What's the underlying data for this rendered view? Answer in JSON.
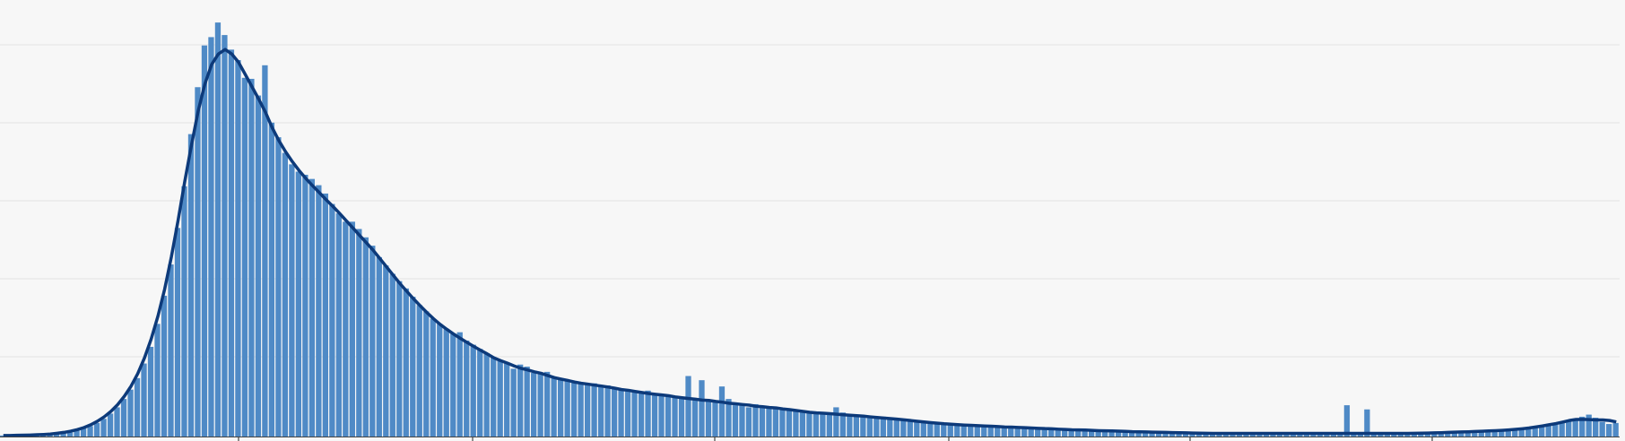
{
  "colors": {
    "background": "#f7f7f7",
    "bar": "#4f8ac6",
    "bar_edge": "#ffffff",
    "curve": "#0d3a7a",
    "grid": "#e3e3e3",
    "axis": "#444444"
  },
  "chart_data": {
    "type": "bar",
    "overlay": "smoothed-density-line",
    "grid": "horizontal",
    "legend": "none",
    "x_tick_count": 6,
    "gridline_count": 5,
    "ylim": [
      0,
      410
    ],
    "values": [
      1,
      1,
      1,
      1,
      1,
      2,
      2,
      2,
      3,
      3,
      4,
      6,
      8,
      10,
      13,
      17,
      22,
      28,
      36,
      45,
      56,
      70,
      86,
      108,
      135,
      165,
      200,
      240,
      290,
      335,
      375,
      383,
      397,
      385,
      371,
      361,
      366,
      343,
      327,
      314,
      301,
      287,
      272,
      261,
      254,
      251,
      247,
      241,
      233,
      223,
      214,
      206,
      206,
      199,
      191,
      183,
      172,
      164,
      156,
      149,
      142,
      134,
      126,
      120,
      113,
      108,
      103,
      99,
      95,
      92,
      88,
      84,
      80,
      76,
      73,
      70,
      65,
      69,
      67,
      61,
      60,
      62,
      57,
      55,
      54,
      52,
      51,
      51,
      51,
      49,
      49,
      47,
      46,
      44,
      43,
      42,
      44,
      41,
      40,
      39,
      39,
      38,
      37,
      36,
      35,
      35,
      34,
      33,
      36,
      30,
      31,
      28,
      31,
      29,
      29,
      28,
      27,
      26,
      25,
      24,
      24,
      23,
      22,
      21,
      22,
      23,
      21,
      20,
      19,
      19,
      18,
      19,
      18,
      17,
      16,
      15,
      15,
      14,
      14,
      13,
      12,
      12,
      11,
      11,
      11,
      11,
      10,
      10,
      10,
      9,
      9,
      9,
      8,
      9,
      8,
      8,
      7,
      7,
      7,
      7,
      6,
      6,
      6,
      6,
      6,
      5,
      5,
      5,
      5,
      5,
      4,
      4,
      4,
      4,
      4,
      4,
      4,
      3,
      3,
      3,
      3,
      3,
      3,
      3,
      3,
      3,
      3,
      3,
      3,
      3,
      3,
      3,
      3,
      3,
      3,
      3,
      3,
      3,
      3,
      3,
      3,
      3,
      3,
      3,
      3,
      3,
      3,
      3,
      3,
      3,
      3,
      3,
      3,
      4,
      4,
      4,
      4,
      4,
      5,
      5,
      5,
      5,
      6,
      6,
      6,
      7,
      7,
      8,
      9,
      10,
      11,
      13,
      14,
      15,
      16,
      19,
      21,
      18,
      14,
      12,
      13
    ],
    "spikes": [
      {
        "index": 39,
        "value": 356
      },
      {
        "index": 36,
        "value": 344
      },
      {
        "index": 68,
        "value": 100
      },
      {
        "index": 102,
        "value": 58
      },
      {
        "index": 104,
        "value": 54
      },
      {
        "index": 107,
        "value": 48
      },
      {
        "index": 124,
        "value": 28
      },
      {
        "index": 200,
        "value": 30
      },
      {
        "index": 203,
        "value": 26
      }
    ]
  }
}
